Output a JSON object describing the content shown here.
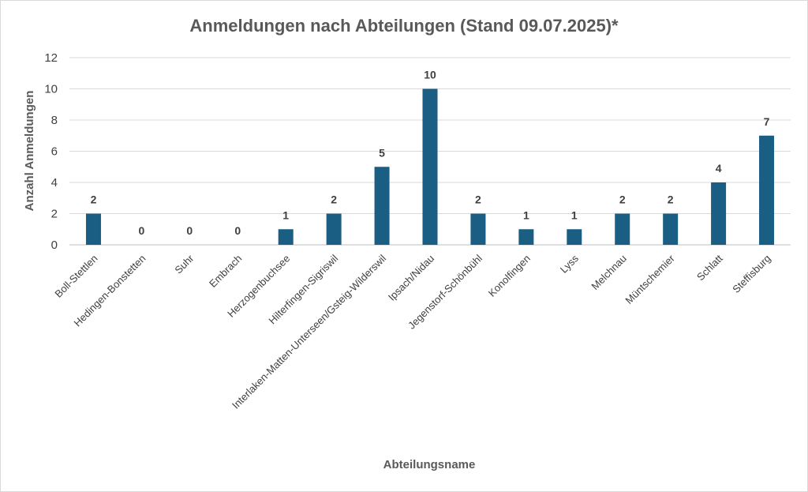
{
  "chart_data": {
    "type": "bar",
    "title": "Anmeldungen nach Abteilungen (Stand 09.07.2025)*",
    "xlabel": "Abteilungsname",
    "ylabel": "Anzahl Anmeldungen",
    "ylim": [
      0,
      12
    ],
    "yticks": [
      0,
      2,
      4,
      6,
      8,
      10,
      12
    ],
    "grid": true,
    "bar_color": "#1a5e84",
    "categories": [
      "Boll-Stettlen",
      "Hedingen-Bonstetten",
      "Suhr",
      "Embrach",
      "Herzogenbuchsee",
      "Hilterfingen-Sigriswil",
      "Interlaken-Matten-Unterseen/Gsteig-Wilderswil",
      "Ipsach/Nidau",
      "Jegenstorf-Schönbühl",
      "Konolfingen",
      "Lyss",
      "Melchnau",
      "Müntschemier",
      "Schlatt",
      "Steffisburg"
    ],
    "values": [
      2,
      0,
      0,
      0,
      1,
      2,
      5,
      10,
      2,
      1,
      1,
      2,
      2,
      4,
      7
    ]
  }
}
